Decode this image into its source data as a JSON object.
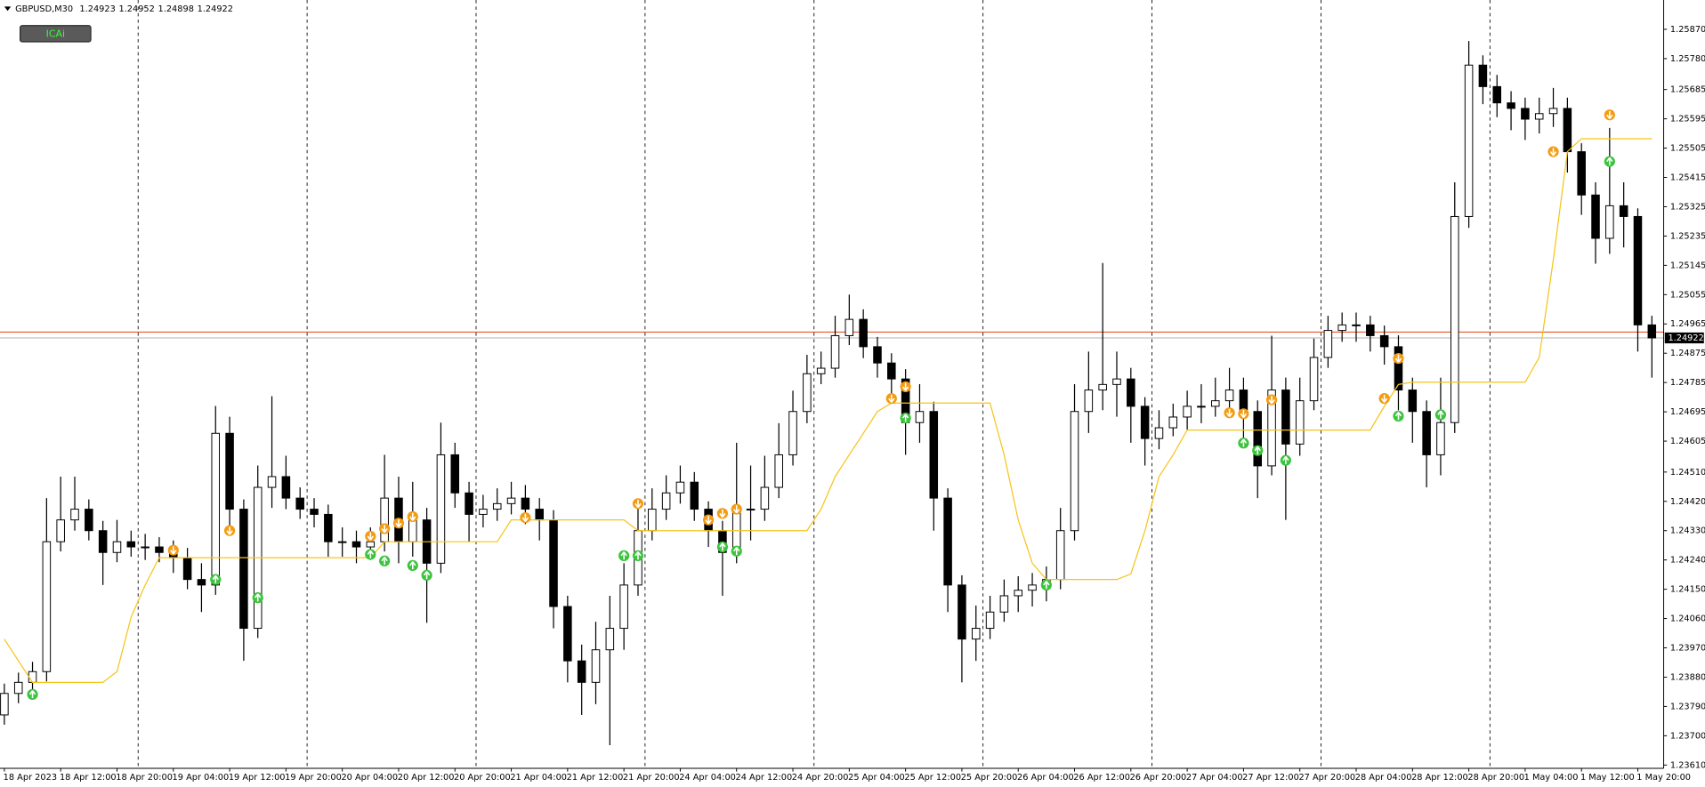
{
  "chart_data": {
    "type": "candlestick",
    "symbol": "GBPUSD,M30",
    "header_prices": [
      1.24923,
      1.24952,
      1.24898,
      1.24922
    ],
    "button": "ICAi",
    "categories": [
      "18 Apr 2023",
      null,
      null,
      null,
      "18 Apr 12:00",
      null,
      null,
      null,
      "18 Apr 20:00",
      null,
      null,
      null,
      "19 Apr 04:00",
      null,
      null,
      null,
      "19 Apr 12:00",
      null,
      null,
      null,
      "19 Apr 20:00",
      null,
      null,
      null,
      "20 Apr 04:00",
      null,
      null,
      null,
      "20 Apr 12:00",
      null,
      null,
      null,
      "20 Apr 20:00",
      null,
      null,
      null,
      "21 Apr 04:00",
      null,
      null,
      null,
      "21 Apr 12:00",
      null,
      null,
      null,
      "21 Apr 20:00",
      null,
      null,
      null,
      "24 Apr 04:00",
      null,
      null,
      null,
      "24 Apr 12:00",
      null,
      null,
      null,
      "24 Apr 20:00",
      null,
      null,
      null,
      "25 Apr 04:00",
      null,
      null,
      null,
      "25 Apr 12:00",
      null,
      null,
      null,
      "25 Apr 20:00",
      null,
      null,
      null,
      "26 Apr 04:00",
      null,
      null,
      null,
      "26 Apr 12:00",
      null,
      null,
      null,
      "26 Apr 20:00",
      null,
      null,
      null,
      "27 Apr 04:00",
      null,
      null,
      null,
      "27 Apr 12:00",
      null,
      null,
      null,
      "27 Apr 20:00",
      null,
      null,
      null,
      "28 Apr 04:00",
      null,
      null,
      null,
      "28 Apr 12:00",
      null,
      null,
      null,
      "28 Apr 20:00",
      null,
      null,
      null,
      "1 May 04:00",
      null,
      null,
      null,
      "1 May 12:00",
      null,
      null,
      null,
      "1 May 20:00",
      null
    ],
    "open": [
      1.23764,
      1.2383,
      1.23864,
      1.23897,
      1.24296,
      1.24363,
      1.24396,
      1.2433,
      1.24263,
      1.24296,
      1.2428,
      1.2428,
      1.24263,
      1.24247,
      1.2418,
      1.24163,
      1.24629,
      1.24396,
      1.2403,
      1.24463,
      1.24496,
      1.2443,
      1.24396,
      1.2438,
      1.24296,
      1.24296,
      1.2428,
      1.24296,
      1.2443,
      1.24296,
      1.24363,
      1.2423,
      1.24563,
      1.24446,
      1.2438,
      1.24396,
      1.24413,
      1.2443,
      1.24396,
      1.24363,
      1.24097,
      1.2393,
      1.23864,
      1.23964,
      1.2403,
      1.24163,
      1.2433,
      1.24396,
      1.24446,
      1.24479,
      1.24396,
      1.2433,
      1.24263,
      1.24396,
      1.24396,
      1.24463,
      1.24563,
      1.24696,
      1.24812,
      1.24829,
      1.24929,
      1.24979,
      1.24895,
      1.24845,
      1.24796,
      1.24662,
      1.24696,
      1.2443,
      1.24163,
      1.23997,
      1.2403,
      1.2408,
      1.2413,
      1.24147,
      1.24163,
      1.2418,
      1.2433,
      1.24696,
      1.24762,
      1.24779,
      1.24796,
      1.24712,
      1.24613,
      1.24646,
      1.24679,
      1.24712,
      1.24712,
      1.24729,
      1.24762,
      1.24696,
      1.24529,
      1.24762,
      1.24596,
      1.24729,
      1.24862,
      1.24945,
      1.24962,
      1.24962,
      1.24929,
      1.24895,
      1.24762,
      1.24696,
      1.24563,
      1.24662,
      1.25295,
      1.2576,
      1.25694,
      1.25644,
      1.25627,
      1.25594,
      1.25611,
      1.25627,
      1.25494,
      1.25361,
      1.25228,
      1.25328,
      1.25295,
      1.24962
    ],
    "high": [
      1.2386,
      1.23894,
      1.23927,
      1.2443,
      1.24496,
      1.24496,
      1.24426,
      1.2436,
      1.24363,
      1.2433,
      1.2432,
      1.2431,
      1.243,
      1.24277,
      1.2423,
      1.24713,
      1.2468,
      1.24426,
      1.2453,
      1.24743,
      1.2456,
      1.24463,
      1.2443,
      1.2441,
      1.2434,
      1.2433,
      1.2434,
      1.24563,
      1.24496,
      1.2448,
      1.244,
      1.24662,
      1.246,
      1.2448,
      1.2444,
      1.2446,
      1.2448,
      1.2447,
      1.2443,
      1.24393,
      1.2413,
      1.2398,
      1.2405,
      1.2413,
      1.2423,
      1.244,
      1.2446,
      1.245,
      1.2453,
      1.2451,
      1.2442,
      1.2436,
      1.246,
      1.2453,
      1.2456,
      1.2466,
      1.2476,
      1.2487,
      1.2488,
      1.2499,
      1.25055,
      1.2501,
      1.24925,
      1.24875,
      1.24826,
      1.2478,
      1.24726,
      1.2446,
      1.24193,
      1.241,
      1.2413,
      1.2418,
      1.2419,
      1.242,
      1.2422,
      1.244,
      1.2478,
      1.2488,
      1.25152,
      1.2488,
      1.2483,
      1.2474,
      1.247,
      1.2472,
      1.2476,
      1.2478,
      1.248,
      1.2483,
      1.248,
      1.2473,
      1.24929,
      1.248,
      1.248,
      1.2492,
      1.2499,
      1.25,
      1.25,
      1.2499,
      1.2496,
      1.2493,
      1.248,
      1.2473,
      1.248,
      1.254,
      1.25834,
      1.2579,
      1.2573,
      1.2568,
      1.2566,
      1.2566,
      1.2569,
      1.2566,
      1.2552,
      1.254,
      1.25567,
      1.254,
      1.2532,
      1.2499
    ],
    "low": [
      1.23734,
      1.238,
      1.23834,
      1.23867,
      1.24266,
      1.2433,
      1.243,
      1.24163,
      1.24233,
      1.2425,
      1.2424,
      1.24233,
      1.242,
      1.2415,
      1.2408,
      1.24133,
      1.2433,
      1.2393,
      1.24,
      1.244,
      1.24396,
      1.24366,
      1.2434,
      1.2425,
      1.2425,
      1.2423,
      1.2424,
      1.24266,
      1.2423,
      1.2425,
      1.24047,
      1.242,
      1.244,
      1.24296,
      1.2434,
      1.2436,
      1.2438,
      1.2435,
      1.243,
      1.2403,
      1.23864,
      1.23764,
      1.23797,
      1.23671,
      1.23964,
      1.2413,
      1.243,
      1.24363,
      1.24413,
      1.2436,
      1.2428,
      1.2413,
      1.2423,
      1.243,
      1.2436,
      1.2443,
      1.2453,
      1.2466,
      1.2478,
      1.248,
      1.249,
      1.2486,
      1.248,
      1.2474,
      1.24563,
      1.246,
      1.2433,
      1.2408,
      1.23864,
      1.2393,
      1.23997,
      1.2405,
      1.2408,
      1.24097,
      1.24113,
      1.2415,
      1.243,
      1.2463,
      1.247,
      1.2468,
      1.246,
      1.2453,
      1.2458,
      1.2462,
      1.2464,
      1.2466,
      1.2468,
      1.2469,
      1.246,
      1.2443,
      1.245,
      1.24363,
      1.2456,
      1.247,
      1.2483,
      1.2491,
      1.2491,
      1.2488,
      1.2484,
      1.247,
      1.246,
      1.24463,
      1.245,
      1.2463,
      1.2526,
      1.2564,
      1.256,
      1.2556,
      1.2553,
      1.2555,
      1.2557,
      1.2543,
      1.253,
      1.2515,
      1.2518,
      1.252,
      1.2488,
      1.248
    ],
    "close": [
      1.2383,
      1.23864,
      1.23897,
      1.24296,
      1.24363,
      1.24396,
      1.2433,
      1.24263,
      1.24296,
      1.2428,
      1.2428,
      1.24263,
      1.24247,
      1.2418,
      1.24163,
      1.24629,
      1.24396,
      1.2403,
      1.24463,
      1.24496,
      1.2443,
      1.24396,
      1.2438,
      1.24296,
      1.24296,
      1.2428,
      1.24296,
      1.2443,
      1.24296,
      1.24363,
      1.2423,
      1.24563,
      1.24446,
      1.2438,
      1.24396,
      1.24413,
      1.2443,
      1.24396,
      1.24363,
      1.24097,
      1.2393,
      1.23864,
      1.23964,
      1.2403,
      1.24163,
      1.2433,
      1.24396,
      1.24446,
      1.24479,
      1.24396,
      1.2433,
      1.24263,
      1.24396,
      1.24396,
      1.24463,
      1.24563,
      1.24696,
      1.24812,
      1.24829,
      1.24929,
      1.24979,
      1.24895,
      1.24845,
      1.24796,
      1.24662,
      1.24696,
      1.2443,
      1.24163,
      1.23997,
      1.2403,
      1.2408,
      1.2413,
      1.24147,
      1.24163,
      1.2418,
      1.2433,
      1.24696,
      1.24762,
      1.24779,
      1.24796,
      1.24712,
      1.24613,
      1.24646,
      1.24679,
      1.24712,
      1.24712,
      1.24729,
      1.24762,
      1.24696,
      1.24529,
      1.24762,
      1.24596,
      1.24729,
      1.24862,
      1.24945,
      1.24962,
      1.24962,
      1.24929,
      1.24895,
      1.24762,
      1.24696,
      1.24563,
      1.24662,
      1.25295,
      1.2576,
      1.25694,
      1.25644,
      1.25627,
      1.25594,
      1.25611,
      1.25627,
      1.25494,
      1.25361,
      1.25228,
      1.25328,
      1.25295,
      1.24962,
      1.24922
    ],
    "color": "#000000",
    "ylim": [
      1.236,
      1.2596
    ],
    "yticks": [
      {
        "value": 1.2361,
        "label": "1.23610"
      },
      {
        "value": 1.237,
        "label": "1.23700"
      },
      {
        "value": 1.2379,
        "label": "1.23790"
      },
      {
        "value": 1.2388,
        "label": "1.23880"
      },
      {
        "value": 1.2397,
        "label": "1.23970"
      },
      {
        "value": 1.2406,
        "label": "1.24060"
      },
      {
        "value": 1.2415,
        "label": "1.24150"
      },
      {
        "value": 1.2424,
        "label": "1.24240"
      },
      {
        "value": 1.2433,
        "label": "1.24330"
      },
      {
        "value": 1.2442,
        "label": "1.24420"
      },
      {
        "value": 1.2451,
        "label": "1.24510"
      },
      1.24605,
      1.24695,
      1.24785,
      1.24875,
      1.24965,
      1.25055,
      1.25145,
      1.25235,
      1.25325,
      1.25415,
      1.25505,
      1.25595,
      1.25685,
      {
        "value": 1.2578,
        "label": "1.25780"
      },
      {
        "value": 1.2587,
        "label": "1.25870"
      }
    ],
    "grid": false,
    "period_separators": true,
    "indicator": {
      "color": "#f5c518",
      "values": [
        1.23997,
        1.2393,
        1.23864,
        1.23864,
        1.23864,
        1.23864,
        1.23864,
        1.23864,
        1.23897,
        1.24064,
        1.24163,
        1.24247,
        1.24247,
        1.24247,
        1.24247,
        1.24247,
        1.24247,
        1.24247,
        1.24247,
        1.24247,
        1.24247,
        1.24247,
        1.24247,
        1.24247,
        1.24247,
        1.24247,
        1.24247,
        1.24296,
        1.24296,
        1.24296,
        1.24296,
        1.24296,
        1.24296,
        1.24296,
        1.24296,
        1.24296,
        1.24363,
        1.24363,
        1.24363,
        1.24363,
        1.24363,
        1.24363,
        1.24363,
        1.24363,
        1.24363,
        1.2433,
        1.2433,
        1.2433,
        1.2433,
        1.2433,
        1.2433,
        1.2433,
        1.2433,
        1.2433,
        1.2433,
        1.2433,
        1.2433,
        1.2433,
        1.24396,
        1.24496,
        1.24563,
        1.24629,
        1.24696,
        1.24722,
        1.24722,
        1.24722,
        1.24722,
        1.24722,
        1.24722,
        1.24722,
        1.24722,
        1.24563,
        1.24363,
        1.2423,
        1.2418,
        1.2418,
        1.2418,
        1.2418,
        1.2418,
        1.2418,
        1.24197,
        1.2433,
        1.24496,
        1.24563,
        1.24639,
        1.24639,
        1.24639,
        1.24639,
        1.24639,
        1.24639,
        1.24639,
        1.24639,
        1.24639,
        1.24639,
        1.24639,
        1.24639,
        1.24639,
        1.24639,
        1.24712,
        1.24779,
        1.24786,
        1.24786,
        1.24786,
        1.24786,
        1.24786,
        1.24786,
        1.24786,
        1.24786,
        1.24786,
        1.24862,
        1.25162,
        1.25494,
        1.25534,
        1.25534,
        1.25534,
        1.25534,
        1.25534,
        1.25534
      ]
    },
    "signals": [
      {
        "color": "#f39c12",
        "direction": "down",
        "index": [
          12,
          16,
          26,
          27,
          28,
          29,
          37,
          45,
          50,
          51,
          52,
          63,
          64,
          87,
          88,
          90,
          98,
          99,
          110,
          114
        ],
        "values": [
          1.2427,
          1.2433,
          1.24313,
          1.24336,
          1.24353,
          1.24373,
          1.2437,
          1.24413,
          1.24363,
          1.24383,
          1.24396,
          1.24736,
          1.24772,
          1.24692,
          1.24689,
          1.24732,
          1.24736,
          1.24859,
          1.25494,
          1.25607
        ]
      },
      {
        "color": "#3cc43c",
        "direction": "up",
        "index": [
          2,
          15,
          18,
          26,
          27,
          29,
          30,
          44,
          45,
          51,
          52,
          64,
          74,
          88,
          89,
          91,
          99,
          102,
          114
        ],
        "values": [
          1.23827,
          1.2418,
          1.24124,
          1.24257,
          1.24237,
          1.24223,
          1.24193,
          1.24253,
          1.24253,
          1.2428,
          1.24267,
          1.24676,
          1.24163,
          1.24599,
          1.24576,
          1.24546,
          1.24682,
          1.24686,
          1.25464
        ]
      }
    ],
    "bid": 1.24922,
    "bid_color": "#b0b0b0",
    "ask": 1.2494,
    "ask_color": "#e8552c"
  }
}
